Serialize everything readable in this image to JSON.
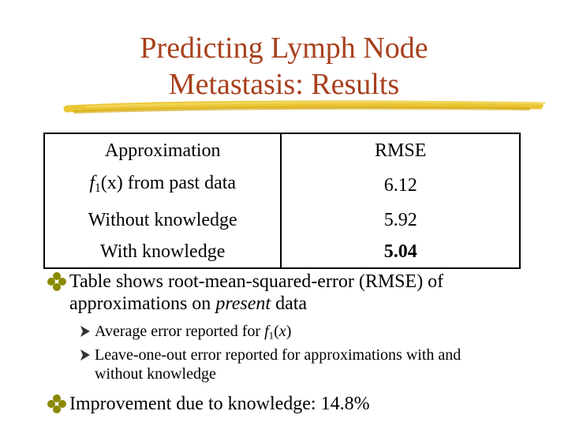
{
  "title": {
    "line1": "Predicting Lymph Node",
    "line2": "Metastasis: Results",
    "color": "#a8401c"
  },
  "table": {
    "header": {
      "col1": "Approximation",
      "col2": "RMSE"
    },
    "rows": [
      {
        "label_prefix": "f",
        "label_sub": "1",
        "label_suffix": "(x) from past data",
        "value": "6.12"
      },
      {
        "label": "Without knowledge",
        "value": "5.92"
      },
      {
        "label": "With knowledge",
        "value": "5.04"
      }
    ]
  },
  "bullets": {
    "b1_pre": "Table shows root-mean-squared-error (RMSE) of approximations on ",
    "b1_em": "present",
    "b1_post": " data",
    "sub1_pre": "Average error reported for ",
    "sub1_f": "f",
    "sub1_sub": "1",
    "sub1_x": "x",
    "sub2": "Leave-one-out error reported for approximations with and without knowledge",
    "b2": "Improvement due to knowledge: 14.8%"
  },
  "colors": {
    "bullet": "#8a8a00",
    "arrow": "#333333",
    "underline": "#e8c020"
  }
}
